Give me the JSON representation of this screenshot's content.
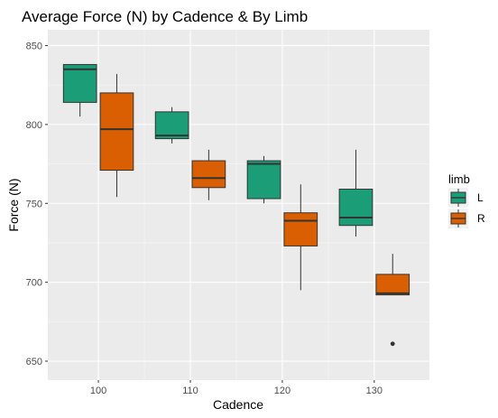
{
  "chart_data": {
    "type": "boxplot",
    "title": "Average Force (N) by Cadence & By Limb",
    "xlabel": "Cadence",
    "ylabel": "Force (N)",
    "xlim": [
      94.5,
      136
    ],
    "ylim": [
      638,
      860
    ],
    "x_ticks": [
      100,
      110,
      120,
      130
    ],
    "x_tick_labels": [
      "100",
      "110",
      "120",
      "130"
    ],
    "y_ticks": [
      650,
      700,
      750,
      800,
      850
    ],
    "y_tick_labels": [
      "650",
      "700",
      "750",
      "800",
      "850"
    ],
    "grid": true,
    "legend": {
      "title": "limb",
      "position": "right"
    },
    "series": [
      {
        "name": "L",
        "color": "#1b9e77",
        "boxes": [
          {
            "x": 98,
            "whisker_low": 805,
            "q1": 814,
            "median": 835,
            "q3": 838,
            "whisker_high": 838,
            "outliers": []
          },
          {
            "x": 108,
            "whisker_low": 788,
            "q1": 791,
            "median": 793,
            "q3": 808,
            "whisker_high": 811,
            "outliers": []
          },
          {
            "x": 118,
            "whisker_low": 750,
            "q1": 753,
            "median": 775,
            "q3": 777,
            "whisker_high": 780,
            "outliers": []
          },
          {
            "x": 128,
            "whisker_low": 729,
            "q1": 736,
            "median": 741,
            "q3": 759,
            "whisker_high": 784,
            "outliers": []
          }
        ]
      },
      {
        "name": "R",
        "color": "#d95f02",
        "boxes": [
          {
            "x": 102,
            "whisker_low": 754,
            "q1": 771,
            "median": 797,
            "q3": 820,
            "whisker_high": 832,
            "outliers": []
          },
          {
            "x": 112,
            "whisker_low": 752,
            "q1": 760,
            "median": 766,
            "q3": 777,
            "whisker_high": 784,
            "outliers": []
          },
          {
            "x": 122,
            "whisker_low": 695,
            "q1": 723,
            "median": 739,
            "q3": 744,
            "whisker_high": 762,
            "outliers": []
          },
          {
            "x": 132,
            "whisker_low": 692,
            "q1": 692,
            "median": 693,
            "q3": 705,
            "whisker_high": 718,
            "outliers": [
              661
            ]
          }
        ]
      }
    ]
  }
}
